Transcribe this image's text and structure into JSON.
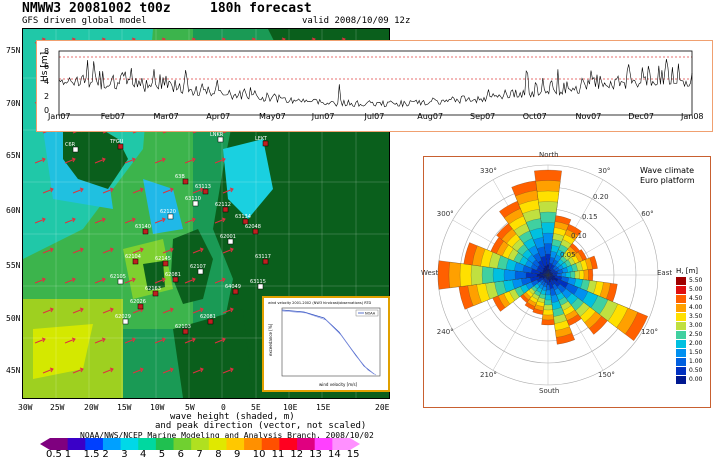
{
  "map": {
    "title_left": "NMWW3 20081002 t00z",
    "title_right": "180h forecast",
    "subtitle": "GFS driven global model",
    "valid": "valid 2008/10/09 12z",
    "lat_labels": [
      "75N",
      "70N",
      "65N",
      "60N",
      "55N",
      "50N",
      "45N"
    ],
    "lon_labels": [
      "30W",
      "25W",
      "20W",
      "15W",
      "10W",
      "5W",
      "0",
      "5E",
      "10E",
      "15E",
      "20E"
    ],
    "caption_line1": "wave height (shaded, m)",
    "caption_line2": "and peak direction (vector, not scaled)",
    "credit": "NOAA/NWS/NCEP Marine Modeling and Analysis Branch, 2008/10/02",
    "station_labels": [
      "LNKR",
      "LEKT",
      "TFGU",
      "C6R",
      "63B",
      "63113",
      "63110",
      "62112",
      "63134",
      "62120",
      "63140",
      "62104",
      "62105",
      "62145",
      "62081",
      "62107",
      "62163",
      "62026",
      "62029",
      "62103",
      "62081",
      "62001",
      "62048",
      "63117",
      "63115",
      "64049"
    ],
    "colorbar": {
      "labels": [
        "0.5",
        "1",
        "1.5",
        "2",
        "3",
        "4",
        "5",
        "6",
        "7",
        "8",
        "9",
        "10",
        "11",
        "12",
        "13",
        "14",
        "15"
      ],
      "colors": [
        "#7f007f",
        "#3a00c8",
        "#0040ff",
        "#00a0ff",
        "#00d8e8",
        "#00d8a0",
        "#20c050",
        "#70d030",
        "#b0e020",
        "#e0e800",
        "#ffc800",
        "#ff9000",
        "#ff5000",
        "#ff0020",
        "#e00080",
        "#ff40ff",
        "#ff90ff"
      ]
    }
  },
  "timeseries": {
    "y_label": "Hs [m]",
    "y_ticks": [
      "8",
      "6",
      "4",
      "2",
      "0"
    ],
    "months": [
      "Jan07",
      "Feb07",
      "Mar07",
      "Apr07",
      "May07",
      "Jun07",
      "Jul07",
      "Aug07",
      "Sep07",
      "Oct07",
      "Nov07",
      "Dec07",
      "Jan08"
    ]
  },
  "wave_rose": {
    "title_line1": "Wave climate",
    "title_line2": "Euro platform",
    "directions": [
      "North",
      "30°",
      "60°",
      "East",
      "120°",
      "150°",
      "South",
      "210°",
      "240°",
      "West",
      "300°",
      "330°"
    ],
    "ring_labels": [
      "0.05",
      "0.10",
      "0.15",
      "0.20"
    ],
    "legend_title": "H, [m]",
    "legend_values": [
      "5.50",
      "5.00",
      "4.50",
      "4.00",
      "3.50",
      "3.00",
      "2.50",
      "2.00",
      "1.50",
      "1.00",
      "0.50",
      "0.00"
    ],
    "legend_colors": [
      "#a00000",
      "#e01010",
      "#ff6000",
      "#ffa000",
      "#ffe000",
      "#c0e040",
      "#40d0a0",
      "#00c0e0",
      "#0090f0",
      "#0060e0",
      "#0030c0",
      "#001890"
    ]
  },
  "inset": {
    "title": "wind velocity 2001-2002 (NW3 hindcast/observations) RTD",
    "xlabel": "wind velocity [m/s]",
    "ylabel": "exceedance [%]",
    "legend": "NOAA"
  }
}
